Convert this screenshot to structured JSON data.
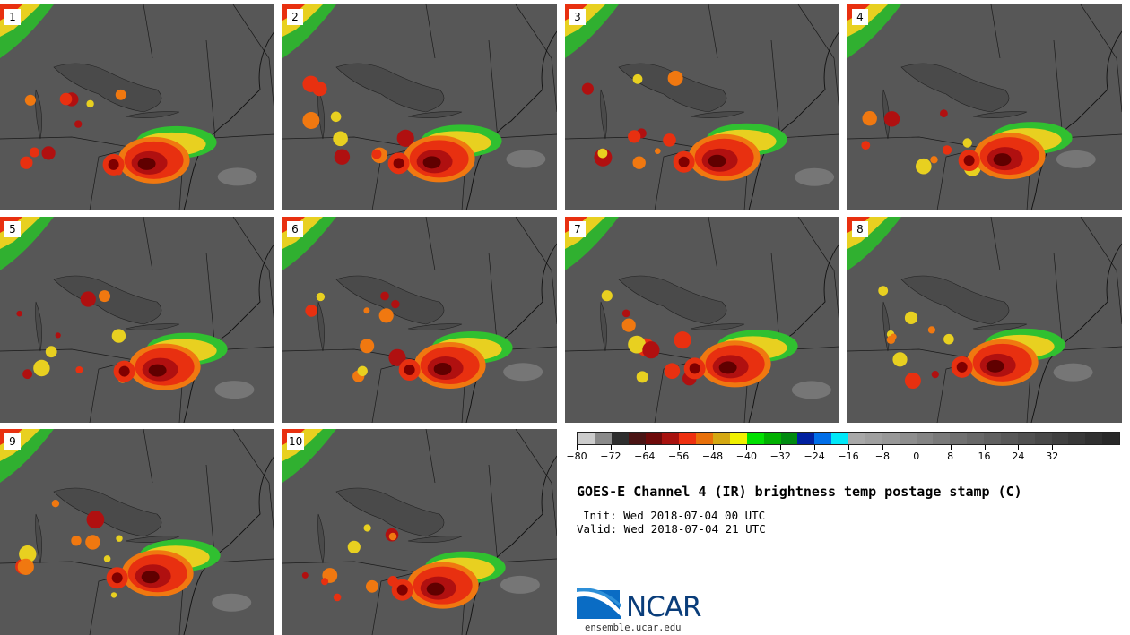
{
  "panels": [
    "1",
    "2",
    "3",
    "4",
    "5",
    "6",
    "7",
    "8",
    "9",
    "10"
  ],
  "colorbar": {
    "colors": [
      "#cccccc",
      "#8a8a8a",
      "#2e2e2e",
      "#4a1414",
      "#6e0a0a",
      "#a8120f",
      "#ee3010",
      "#e8700a",
      "#d4a812",
      "#f0f000",
      "#00e000",
      "#00b000",
      "#008a10",
      "#0020a0",
      "#006ee8",
      "#00e8f8",
      "#a8a8a8",
      "#a0a0a0",
      "#989898",
      "#8e8e8e",
      "#848484",
      "#7a7a7a",
      "#707070",
      "#686868",
      "#606060",
      "#585858",
      "#505050",
      "#484848",
      "#404040",
      "#383838",
      "#303030",
      "#282828"
    ],
    "tick_labels": [
      "−80",
      "−72",
      "−64",
      "−56",
      "−48",
      "−40",
      "−32",
      "−24",
      "−16",
      "−8",
      "0",
      "8",
      "16",
      "24",
      "32"
    ]
  },
  "title": "GOES-E Channel 4 (IR) brightness temp postage stamp (C)",
  "init": "Init: Wed 2018-07-04 00 UTC",
  "valid": "Valid: Wed 2018-07-04 21 UTC",
  "logo": "NCAR",
  "site": "ensemble.ucar.edu"
}
